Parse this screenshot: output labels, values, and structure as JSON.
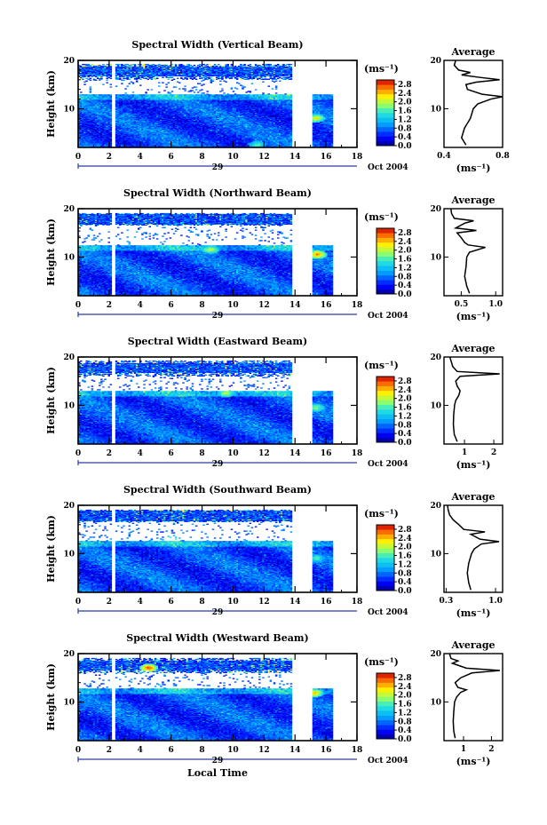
{
  "chart_data": [
    {
      "type": "heatmap",
      "title": "Spectral Width (Vertical Beam)",
      "ylabel": "Height (km)",
      "xlim": [
        0,
        18
      ],
      "ylim": [
        2,
        20
      ],
      "x_ticks": [
        "0",
        "2",
        "4",
        "6",
        "8",
        "10",
        "12",
        "14",
        "16",
        "18"
      ],
      "y_ticks": [
        "10",
        "20"
      ],
      "day_label": "29",
      "date_label": "Oct 2004",
      "colorbar": {
        "unit": "(ms⁻¹)",
        "ticks": [
          "0.0",
          "0.4",
          "0.8",
          "1.2",
          "1.6",
          "2.0",
          "2.4",
          "2.8"
        ],
        "range": [
          0,
          3.0
        ]
      },
      "data_gaps_x": [
        [
          2.1,
          2.3
        ],
        [
          13.7,
          15.0
        ],
        [
          16.4,
          18
        ]
      ],
      "clear_air_top_km": 12.8,
      "upper_band_km": [
        16.0,
        19.2
      ],
      "upper_band_extent_x": [
        0,
        13.7
      ],
      "enhanced_features": [
        {
          "x": 15.3,
          "y": 8.0,
          "value": 2.2
        },
        {
          "x": 11.5,
          "y": 2.5,
          "value": 1.6
        }
      ],
      "profile": {
        "title": "Average",
        "xlim": [
          0.4,
          0.8
        ],
        "x_ticks": [
          "0.4",
          "0.8"
        ],
        "xlabel": "(ms⁻¹)",
        "heights": [
          2.5,
          4,
          6,
          8,
          10,
          11,
          12,
          12.5,
          13,
          14,
          15,
          15.5,
          16,
          16.5,
          17,
          17.5,
          18,
          19,
          20
        ],
        "values": [
          0.55,
          0.52,
          0.54,
          0.58,
          0.6,
          0.63,
          0.72,
          0.8,
          0.66,
          0.56,
          0.55,
          0.62,
          0.78,
          0.64,
          0.52,
          0.58,
          0.5,
          0.47,
          0.48
        ]
      }
    },
    {
      "type": "heatmap",
      "title": "Spectral Width (Northward Beam)",
      "ylabel": "Height (km)",
      "xlim": [
        0,
        18
      ],
      "ylim": [
        2,
        20
      ],
      "x_ticks": [
        "0",
        "2",
        "4",
        "6",
        "8",
        "10",
        "12",
        "14",
        "16",
        "18"
      ],
      "y_ticks": [
        "10",
        "20"
      ],
      "day_label": "29",
      "date_label": "Oct 2004",
      "colorbar": {
        "unit": "(ms⁻¹)",
        "ticks": [
          "0.0",
          "0.4",
          "0.8",
          "1.2",
          "1.6",
          "2.0",
          "2.4",
          "2.8"
        ],
        "range": [
          0,
          3.0
        ]
      },
      "data_gaps_x": [
        [
          2.1,
          2.3
        ],
        [
          13.7,
          15.0
        ],
        [
          16.4,
          18
        ]
      ],
      "clear_air_top_km": 12.3,
      "upper_band_km": [
        16.5,
        19.0
      ],
      "upper_band_extent_x": [
        0,
        13.7
      ],
      "enhanced_features": [
        {
          "x": 15.4,
          "y": 10.5,
          "value": 2.6
        },
        {
          "x": 8.5,
          "y": 11.5,
          "value": 2.0
        }
      ],
      "profile": {
        "title": "Average",
        "xlim": [
          0.25,
          1.1
        ],
        "x_ticks": [
          "0.5",
          "1.0"
        ],
        "xlabel": "(ms⁻¹)",
        "heights": [
          2.5,
          4,
          6,
          8,
          10,
          11,
          12,
          12.5,
          13,
          14,
          15,
          15.5,
          16,
          17,
          17.5,
          18,
          19,
          20
        ],
        "values": [
          0.62,
          0.58,
          0.55,
          0.57,
          0.58,
          0.62,
          0.85,
          0.6,
          0.55,
          0.5,
          0.44,
          0.72,
          0.42,
          0.55,
          0.68,
          0.4,
          0.36,
          0.35
        ]
      }
    },
    {
      "type": "heatmap",
      "title": "Spectral Width (Eastward Beam)",
      "ylabel": "Height (km)",
      "xlim": [
        0,
        18
      ],
      "ylim": [
        2,
        20
      ],
      "x_ticks": [
        "0",
        "2",
        "4",
        "6",
        "8",
        "10",
        "12",
        "14",
        "16",
        "18"
      ],
      "y_ticks": [
        "10",
        "20"
      ],
      "day_label": "29",
      "date_label": "Oct 2004",
      "colorbar": {
        "unit": "(ms⁻¹)",
        "ticks": [
          "0.0",
          "0.4",
          "0.8",
          "1.2",
          "1.6",
          "2.0",
          "2.4",
          "2.8"
        ],
        "range": [
          0,
          3.0
        ]
      },
      "data_gaps_x": [
        [
          2.1,
          2.3
        ],
        [
          13.7,
          15.0
        ],
        [
          16.4,
          18
        ]
      ],
      "clear_air_top_km": 12.8,
      "upper_band_km": [
        16.0,
        19.2
      ],
      "upper_band_extent_x": [
        0,
        13.7
      ],
      "enhanced_features": [
        {
          "x": 15.3,
          "y": 9.5,
          "value": 1.8
        },
        {
          "x": 9.5,
          "y": 12.5,
          "value": 2.0
        }
      ],
      "profile": {
        "title": "Average",
        "xlim": [
          0.3,
          2.3
        ],
        "x_ticks": [
          "1",
          "2"
        ],
        "xlabel": "(ms⁻¹)",
        "heights": [
          2.5,
          4,
          6,
          8,
          10,
          11,
          12,
          13,
          14,
          15,
          16,
          16.5,
          17,
          18,
          19,
          20
        ],
        "values": [
          0.75,
          0.65,
          0.62,
          0.63,
          0.66,
          0.7,
          0.8,
          0.85,
          0.75,
          0.7,
          0.85,
          2.2,
          0.75,
          0.6,
          0.55,
          0.5
        ]
      }
    },
    {
      "type": "heatmap",
      "title": "Spectral Width (Southward Beam)",
      "ylabel": "Height (km)",
      "xlim": [
        0,
        18
      ],
      "ylim": [
        2,
        20
      ],
      "x_ticks": [
        "0",
        "2",
        "4",
        "6",
        "8",
        "10",
        "12",
        "14",
        "16",
        "18"
      ],
      "y_ticks": [
        "10",
        "20"
      ],
      "day_label": "29",
      "date_label": "Oct 2004",
      "colorbar": {
        "unit": "(ms⁻¹)",
        "ticks": [
          "0.0",
          "0.4",
          "0.8",
          "1.2",
          "1.6",
          "2.0",
          "2.4",
          "2.8"
        ],
        "range": [
          0,
          3.0
        ]
      },
      "data_gaps_x": [
        [
          2.1,
          2.3
        ],
        [
          13.7,
          15.0
        ],
        [
          16.4,
          18
        ]
      ],
      "clear_air_top_km": 12.5,
      "upper_band_km": [
        16.5,
        19.0
      ],
      "upper_band_extent_x": [
        0,
        13.7
      ],
      "enhanced_features": [
        {
          "x": 15.3,
          "y": 9.0,
          "value": 1.6
        },
        {
          "x": 6.0,
          "y": 13.0,
          "value": 1.6
        }
      ],
      "profile": {
        "title": "Average",
        "xlim": [
          0.27,
          1.1
        ],
        "x_ticks": [
          "0.3",
          "1.0"
        ],
        "xlabel": "(ms⁻¹)",
        "heights": [
          2.5,
          4,
          6,
          8,
          10,
          11,
          12,
          12.5,
          13,
          14,
          14.5,
          15,
          16,
          17,
          18,
          19,
          20
        ],
        "values": [
          0.65,
          0.62,
          0.6,
          0.62,
          0.66,
          0.7,
          0.8,
          1.05,
          0.78,
          0.65,
          0.85,
          0.55,
          0.48,
          0.4,
          0.35,
          0.33,
          0.32
        ]
      }
    },
    {
      "type": "heatmap",
      "title": "Spectral Width (Westward Beam)",
      "ylabel": "Height (km)",
      "xlabel": "Local Time",
      "xlim": [
        0,
        18
      ],
      "ylim": [
        2,
        20
      ],
      "x_ticks": [
        "0",
        "2",
        "4",
        "6",
        "8",
        "10",
        "12",
        "14",
        "16",
        "18"
      ],
      "y_ticks": [
        "10",
        "20"
      ],
      "day_label": "29",
      "date_label": "Oct 2004",
      "colorbar": {
        "unit": "(ms⁻¹)",
        "ticks": [
          "0.0",
          "0.4",
          "0.8",
          "1.2",
          "1.6",
          "2.0",
          "2.4",
          "2.8"
        ],
        "range": [
          0,
          3.0
        ]
      },
      "data_gaps_x": [
        [
          2.1,
          2.3
        ],
        [
          13.7,
          15.0
        ],
        [
          16.4,
          18
        ]
      ],
      "clear_air_top_km": 12.7,
      "upper_band_km": [
        16.0,
        19.0
      ],
      "upper_band_extent_x": [
        0,
        13.7
      ],
      "enhanced_features": [
        {
          "x": 4.5,
          "y": 17.0,
          "value": 2.8
        },
        {
          "x": 15.2,
          "y": 11.8,
          "value": 2.4
        }
      ],
      "profile": {
        "title": "Average",
        "xlim": [
          0.3,
          2.4
        ],
        "x_ticks": [
          "1",
          "2"
        ],
        "xlabel": "(ms⁻¹)",
        "heights": [
          2.5,
          4,
          6,
          8,
          10,
          11,
          12,
          12.5,
          13,
          14,
          15,
          16,
          16.5,
          17,
          18,
          18.5,
          19,
          20
        ],
        "values": [
          0.7,
          0.65,
          0.63,
          0.65,
          0.68,
          0.75,
          0.9,
          1.1,
          0.8,
          0.7,
          0.9,
          1.3,
          2.3,
          1.1,
          0.6,
          0.8,
          0.55,
          0.5
        ]
      }
    }
  ]
}
